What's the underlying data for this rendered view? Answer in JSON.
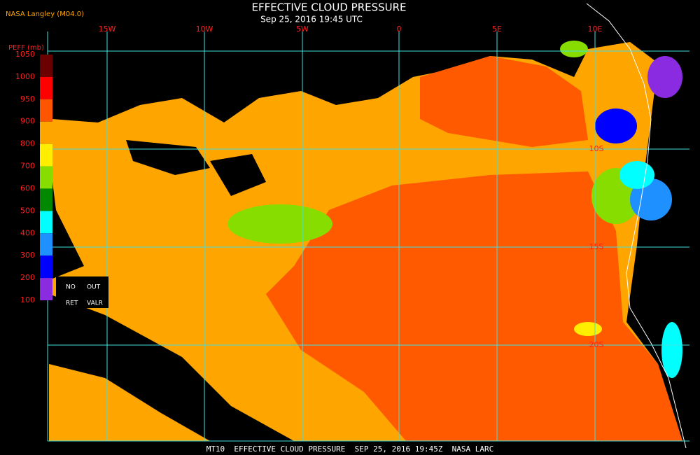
{
  "header": {
    "source": "NASA Langley (M04.0)",
    "title": "EFFECTIVE CLOUD PRESSURE",
    "time": "Sep 25, 2016 19:45 UTC"
  },
  "map": {
    "lon_labels": [
      "15W",
      "10W",
      "5W",
      "0",
      "5E",
      "10E"
    ],
    "lat_labels": [
      "10S",
      "15S",
      "20S"
    ]
  },
  "colorbar": {
    "title": "PEFF (mb)",
    "ticks": [
      1050,
      1000,
      950,
      900,
      800,
      700,
      600,
      500,
      400,
      300,
      200,
      100
    ],
    "colors": [
      "#6b0000",
      "#ff0000",
      "#ff5500",
      "#ffa500",
      "#ffee00",
      "#88dd00",
      "#008800",
      "#00ffff",
      "#1e90ff",
      "#0000ff",
      "#8a2be2"
    ],
    "legend": [
      "NO",
      "OUT",
      "RET",
      "VALR"
    ]
  },
  "footer": "MT10  EFFECTIVE CLOUD PRESSURE  SEP 25, 2016 19:45Z  NASA LARC"
}
